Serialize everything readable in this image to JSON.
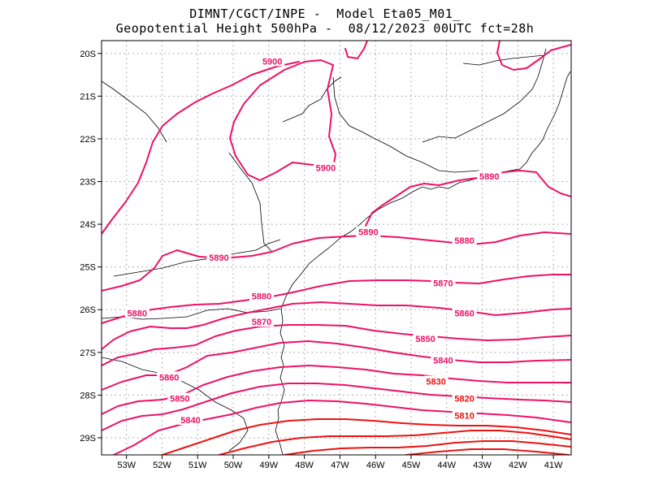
{
  "title": {
    "line1": "DIMNT/CGCT/INPE -  Model Eta05_M01_",
    "line2": "Geopotential Height 500hPa -  08/12/2023 00UTC fct=28h"
  },
  "map": {
    "lon_range": [
      -53.7,
      -40.5
    ],
    "lat_range": [
      -29.4,
      -19.7
    ],
    "lat_ticks": [
      "20S",
      "21S",
      "22S",
      "23S",
      "24S",
      "25S",
      "26S",
      "27S",
      "28S",
      "29S"
    ],
    "lon_ticks": [
      "53W",
      "52W",
      "51W",
      "50W",
      "49W",
      "48W",
      "47W",
      "46W",
      "45W",
      "44W",
      "43W",
      "42W",
      "41W"
    ],
    "grid": "dotted",
    "colors": {
      "contour_5900_5840": "#ee1166",
      "contour_5830_5810": "#ee1111",
      "boundaries": "#000000"
    },
    "contour_labels": [
      {
        "text": "5900",
        "lon": -48.9,
        "lat": -20.2
      },
      {
        "text": "5900",
        "lon": -47.4,
        "lat": -22.7
      },
      {
        "text": "5890",
        "lon": -42.8,
        "lat": -22.9
      },
      {
        "text": "5890",
        "lon": -46.2,
        "lat": -24.2
      },
      {
        "text": "5890",
        "lon": -50.4,
        "lat": -24.8
      },
      {
        "text": "5880",
        "lon": -43.5,
        "lat": -24.4
      },
      {
        "text": "5880",
        "lon": -49.2,
        "lat": -25.7
      },
      {
        "text": "5880",
        "lon": -52.7,
        "lat": -26.1
      },
      {
        "text": "5870",
        "lon": -44.1,
        "lat": -25.4
      },
      {
        "text": "5870",
        "lon": -49.2,
        "lat": -26.3
      },
      {
        "text": "5860",
        "lon": -43.5,
        "lat": -26.1
      },
      {
        "text": "5860",
        "lon": -51.8,
        "lat": -27.6
      },
      {
        "text": "5850",
        "lon": -44.6,
        "lat": -26.7
      },
      {
        "text": "5850",
        "lon": -51.5,
        "lat": -28.1
      },
      {
        "text": "5840",
        "lon": -44.1,
        "lat": -27.2
      },
      {
        "text": "5840",
        "lon": -51.2,
        "lat": -28.6
      },
      {
        "text": "5830",
        "lon": -44.3,
        "lat": -27.7
      },
      {
        "text": "5820",
        "lon": -43.5,
        "lat": -28.1
      },
      {
        "text": "5810",
        "lon": -43.5,
        "lat": -28.5
      }
    ]
  }
}
